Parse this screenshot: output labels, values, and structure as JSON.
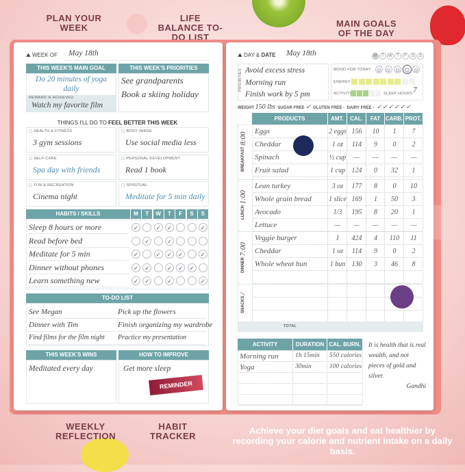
{
  "callouts": {
    "plan": "PLAN YOUR WEEK",
    "life": "LIFE BALANCE TO-DO LIST",
    "goals": "MAIN GOALS OF THE DAY",
    "reflection": "WEEKLY REFLECTION",
    "habit": "HABIT TRACKER"
  },
  "tagline": "Achieve your diet goals and eat healthier by recording your calorie and nutrient intake on a daily basis.",
  "left": {
    "week_of_label": "WEEK OF",
    "week_of_value": "May 18th",
    "main_goal": {
      "title": "THIS WEEK'S MAIN GOAL",
      "value": "Do 20 minutes of yoga daily",
      "reward_label": "REWARD IF ACHIEVED",
      "reward_value": "Watch my favorite film"
    },
    "priorities": {
      "title": "THIS WEEK'S PRIORITIES",
      "items": [
        "See grandparents",
        "Book a skiing holiday"
      ]
    },
    "feel_better": {
      "prefix": "THINGS I'LL DO TO ",
      "bold": "FEEL BETTER THIS WEEK"
    },
    "areas": [
      {
        "label": "HEALTH & FITNESS",
        "value": "3 gym sessions",
        "icon": "dumbbell-icon"
      },
      {
        "label": "BODY IMAGE",
        "value": "Use social media less",
        "icon": "mirror-icon"
      },
      {
        "label": "SELF-CARE",
        "value": "Spa day with friends",
        "icon": "bath-icon"
      },
      {
        "label": "PERSONAL DEVELOPMENT",
        "value": "Read 1 book",
        "icon": "book-icon"
      },
      {
        "label": "FUN & RECREATION",
        "value": "Cinema night",
        "icon": "ferris-wheel-icon"
      },
      {
        "label": "SPIRITUAL",
        "value": "Meditate for 5 min daily",
        "icon": "lotus-icon"
      }
    ],
    "habits": {
      "title": "HABITS / SKILLS",
      "days": [
        "M",
        "T",
        "W",
        "T",
        "F",
        "S",
        "S"
      ],
      "rows": [
        {
          "name": "Sleep 8 hours or more",
          "checks": [
            1,
            0,
            1,
            1,
            0,
            0,
            1
          ]
        },
        {
          "name": "Read before bed",
          "checks": [
            0,
            1,
            0,
            1,
            0,
            0,
            0
          ]
        },
        {
          "name": "Meditate for 5 min",
          "checks": [
            1,
            0,
            1,
            1,
            1,
            0,
            1
          ]
        },
        {
          "name": "Dinner without phones",
          "checks": [
            1,
            1,
            0,
            1,
            1,
            1,
            0
          ]
        },
        {
          "name": "Learn something new",
          "checks": [
            1,
            1,
            0,
            1,
            0,
            0,
            1
          ]
        }
      ]
    },
    "todo": {
      "title": "TO-DO LIST",
      "items": [
        "See Megan",
        "Pick up the flowers",
        "Dinner with Tim",
        "Finish organizing my wardrobe",
        "Find films for the film night",
        "Practice my presentation"
      ]
    },
    "wins": {
      "title": "THIS WEEK'S WINS",
      "items": [
        "Meditated every day"
      ]
    },
    "improve": {
      "title": "HOW TO IMPROVE",
      "items": [
        "Get more sleep"
      ]
    },
    "reminder": "REMINDER"
  },
  "right": {
    "day_label": "DAY & ",
    "date_label": "DATE",
    "date_value": "May 18th",
    "weekdays": [
      "M",
      "T",
      "W",
      "T",
      "F",
      "S",
      "S"
    ],
    "selected_weekday": 0,
    "priorities_label": "PRIORITIES",
    "priorities": [
      "Avoid excess stress",
      "Morning run",
      "Finish work by 5 pm"
    ],
    "mood_label": "MOOD FOR TODAY",
    "mood_selected": 3,
    "energy_label": "ENERGY",
    "energy_level": 7,
    "energy_max": 9,
    "activity_label": "ACTIVITY",
    "activity_level": 3,
    "activity_max": 5,
    "sleep_label": "SLEEP HOURS",
    "sleep_value": "7",
    "weight_label": "WEIGHT",
    "weight_value": "150 lbs",
    "sugar_label": "SUGAR FREE",
    "sugar_value": "✓",
    "gluten_label": "GLUTEN FREE",
    "dairy_label": "DAIRY FREE",
    "water": "✓✓✓✓✓✓",
    "columns": [
      "PRODUCTS",
      "AMT.",
      "CAL.",
      "FAT",
      "CARB.",
      "PROT."
    ],
    "meals": [
      {
        "label": "BREAKFAST",
        "time": "8:00",
        "rows": [
          [
            "Eggs",
            "2 eggs",
            "156",
            "10",
            "1",
            "7"
          ],
          [
            "Cheddar",
            "1 oz",
            "114",
            "9",
            "0",
            "2"
          ],
          [
            "Spinach",
            "½ cup",
            "—",
            "—",
            "—",
            "—"
          ],
          [
            "Fruit salad",
            "1 cup",
            "124",
            "0",
            "32",
            "1"
          ]
        ]
      },
      {
        "label": "LUNCH",
        "time": "1:00",
        "rows": [
          [
            "Lean turkey",
            "3 oz",
            "177",
            "8",
            "0",
            "10"
          ],
          [
            "Whole grain bread",
            "1 slice",
            "169",
            "1",
            "50",
            "3"
          ],
          [
            "Avocado",
            "1/3",
            "195",
            "8",
            "20",
            "1"
          ],
          [
            "Lettuce",
            "—",
            "—",
            "—",
            "—",
            "—"
          ]
        ]
      },
      {
        "label": "DINNER",
        "time": "7:00",
        "rows": [
          [
            "Veggie burger",
            "1",
            "424",
            "4",
            "110",
            "11"
          ],
          [
            "Cheddar",
            "1 oz",
            "114",
            "9",
            "0",
            "2"
          ],
          [
            "Whole wheat bun",
            "1 bun",
            "130",
            "3",
            "46",
            "8"
          ]
        ]
      },
      {
        "label": "SNACKS",
        "time": "/",
        "rows": []
      }
    ],
    "total_label": "TOTAL",
    "activity_cols": [
      "ACTIVITY",
      "DURATION",
      "CAL. BURN."
    ],
    "activities": [
      [
        "Morning run",
        "1h 15min",
        "550 calories"
      ],
      [
        "Yoga",
        "30min",
        "100 calories"
      ]
    ],
    "quote": "It is health that is real wealth, and not pieces of gold and silver.",
    "quote_author": "Gandhi"
  },
  "colors": {
    "teal": "#6ea4a8",
    "callout": "#7a3b44",
    "cover": "#f08d86",
    "energy": "#e8ec8a",
    "activity": "#a8d48a",
    "reminder": "#a0203f"
  }
}
